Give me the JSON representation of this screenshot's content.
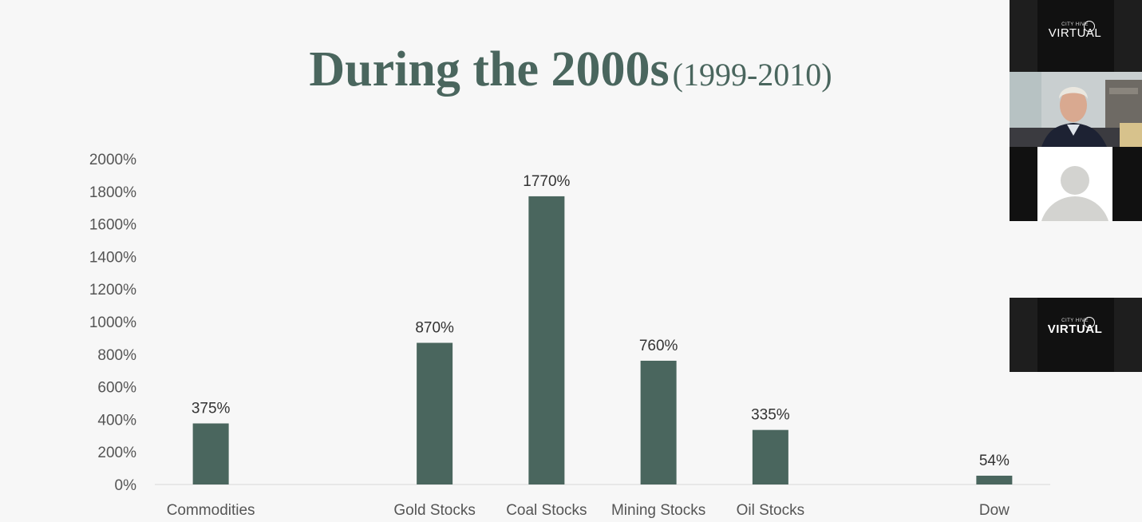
{
  "slide": {
    "title_main": "During the 2000s",
    "title_sub": "(1999-2010)"
  },
  "chart_data": {
    "type": "bar",
    "title": "During the 2000s (1999-2010)",
    "categories": [
      "Commodities",
      "",
      "Gold Stocks",
      "Coal Stocks",
      "Mining Stocks",
      "Oil Stocks",
      "",
      "Dow"
    ],
    "values": [
      375,
      null,
      870,
      1770,
      760,
      335,
      null,
      54
    ],
    "value_labels": [
      "375%",
      "",
      "870%",
      "1770%",
      "760%",
      "335%",
      "",
      "54%"
    ],
    "ylim": [
      0,
      2000
    ],
    "yticks": [
      0,
      200,
      400,
      600,
      800,
      1000,
      1200,
      1400,
      1600,
      1800,
      2000
    ],
    "ytick_labels": [
      "0%",
      "200%",
      "400%",
      "600%",
      "800%",
      "1000%",
      "1200%",
      "1400%",
      "1600%",
      "1800%",
      "2000%"
    ],
    "bar_color": "#4a665e",
    "grid": false
  },
  "participants": {
    "tiles": [
      {
        "kind": "logo",
        "brand_small": "CITY HIVE",
        "brand_word": "VIRTUAL"
      },
      {
        "kind": "video",
        "name": ""
      },
      {
        "kind": "avatar"
      },
      {
        "kind": "logo",
        "brand_small": "CITY HIVE",
        "brand_word": "VIRTUAL"
      }
    ]
  },
  "colors": {
    "background": "#f7f7f7",
    "accent": "#4a665e",
    "tile_background": "#111111"
  }
}
